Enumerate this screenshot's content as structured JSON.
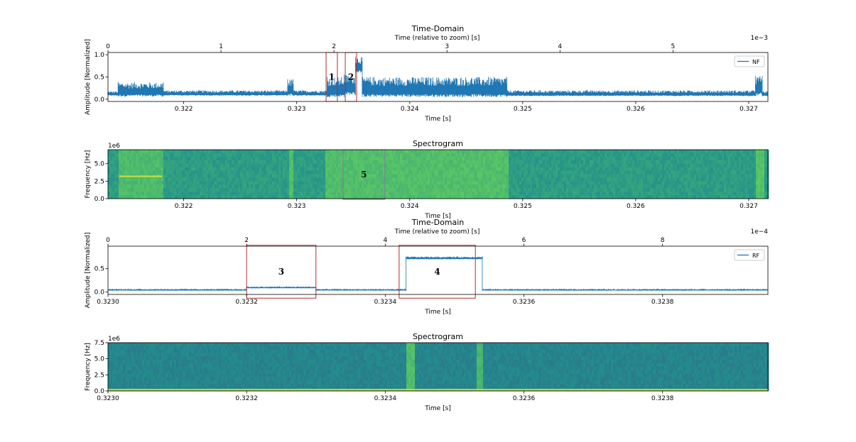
{
  "chart_data": [
    {
      "type": "line",
      "title": "Time-Domain",
      "xlabel": "Time [s]",
      "ylabel": "Amplitude [Normalized]",
      "top_xlabel": "Time (relative to zoom) [s]",
      "top_offset_label": "1e−3",
      "xlim": [
        0.32133,
        0.32717
      ],
      "ylim": [
        -0.05,
        1.05
      ],
      "x_ticks": [
        0.322,
        0.323,
        0.324,
        0.325,
        0.326,
        0.327
      ],
      "x_tick_labels": [
        "0.322",
        "0.323",
        "0.324",
        "0.325",
        "0.326",
        "0.327"
      ],
      "top_x_ticks": [
        0,
        1,
        2,
        3,
        4,
        5
      ],
      "top_x_tick_labels": [
        "0",
        "1",
        "2",
        "3",
        "4",
        "5"
      ],
      "y_ticks": [
        0.0,
        0.5,
        1.0
      ],
      "y_tick_labels": [
        "0.0",
        "0.5",
        "1.0"
      ],
      "series": [
        {
          "name": "NF",
          "color": "#1f77b4",
          "envelope": [
            {
              "x0": 0.32133,
              "x1": 0.32142,
              "low": 0.08,
              "high": 0.18
            },
            {
              "x0": 0.32142,
              "x1": 0.32182,
              "low": 0.06,
              "high": 0.38
            },
            {
              "x0": 0.32182,
              "x1": 0.32292,
              "low": 0.08,
              "high": 0.2
            },
            {
              "x0": 0.32292,
              "x1": 0.32297,
              "low": 0.08,
              "high": 0.45
            },
            {
              "x0": 0.32297,
              "x1": 0.32327,
              "low": 0.08,
              "high": 0.2
            },
            {
              "x0": 0.32327,
              "x1": 0.32342,
              "low": 0.05,
              "high": 0.5
            },
            {
              "x0": 0.32342,
              "x1": 0.32352,
              "low": 0.1,
              "high": 0.55
            },
            {
              "x0": 0.32352,
              "x1": 0.32358,
              "low": 0.6,
              "high": 0.95
            },
            {
              "x0": 0.32358,
              "x1": 0.32365,
              "low": 0.05,
              "high": 0.5
            },
            {
              "x0": 0.32365,
              "x1": 0.32486,
              "low": 0.05,
              "high": 0.5
            },
            {
              "x0": 0.32486,
              "x1": 0.32706,
              "low": 0.07,
              "high": 0.2
            },
            {
              "x0": 0.32706,
              "x1": 0.32712,
              "low": 0.08,
              "high": 0.52
            },
            {
              "x0": 0.32712,
              "x1": 0.32717,
              "low": 0.07,
              "high": 0.18
            }
          ]
        }
      ],
      "legend": "upper right",
      "annotations": [
        {
          "label": "1",
          "x0": 0.32326,
          "x1": 0.32336,
          "y0": -0.05,
          "y1": 1.05
        },
        {
          "label": "2",
          "x0": 0.32343,
          "x1": 0.32353,
          "y0": -0.05,
          "y1": 1.05
        }
      ]
    },
    {
      "type": "heatmap",
      "title": "Spectrogram",
      "xlabel": "Time [s]",
      "ylabel": "Frequency [Hz]",
      "offset_label": "1e6",
      "xlim": [
        0.32133,
        0.32717
      ],
      "ylim": [
        0,
        7.0
      ],
      "x_ticks": [
        0.322,
        0.323,
        0.324,
        0.325,
        0.326,
        0.327
      ],
      "x_tick_labels": [
        "0.322",
        "0.323",
        "0.324",
        "0.325",
        "0.326",
        "0.327"
      ],
      "y_ticks": [
        0.0,
        2.5,
        5.0
      ],
      "y_tick_labels": [
        "0.0",
        "2.5",
        "5.0"
      ],
      "colormap": "viridis",
      "base_level": 0.55,
      "active_bands": [
        {
          "x0": 0.32142,
          "x1": 0.32182,
          "level": 0.68
        },
        {
          "x0": 0.32292,
          "x1": 0.32297,
          "level": 0.7
        },
        {
          "x0": 0.32325,
          "x1": 0.32486,
          "level": 0.7
        },
        {
          "x0": 0.32705,
          "x1": 0.32712,
          "level": 0.72
        }
      ],
      "tone_lines": [
        {
          "x0": 0.32143,
          "x1": 0.32181,
          "freq": 3.2
        }
      ],
      "annotations": [
        {
          "label": "5",
          "x0": 0.32341,
          "x1": 0.32378,
          "y0": -0.1,
          "y1": 7.0
        }
      ]
    },
    {
      "type": "line",
      "title": "Time-Domain",
      "xlabel": "Time [s]",
      "ylabel": "Amplitude [Normalized]",
      "top_xlabel": "Time (relative to zoom) [s]",
      "top_offset_label": "1e−4",
      "xlim": [
        0.323,
        0.323952
      ],
      "ylim": [
        -0.05,
        0.98
      ],
      "x_ticks": [
        0.323,
        0.3232,
        0.3234,
        0.3236,
        0.3238
      ],
      "x_tick_labels": [
        "0.3230",
        "0.3232",
        "0.3234",
        "0.3236",
        "0.3238"
      ],
      "top_x_ticks": [
        0,
        2,
        4,
        6,
        8
      ],
      "top_x_tick_labels": [
        "0",
        "2",
        "4",
        "6",
        "8"
      ],
      "y_ticks": [
        0.0,
        0.5
      ],
      "y_tick_labels": [
        "0.0",
        "0.5"
      ],
      "series": [
        {
          "name": "RF",
          "color": "#1f77b4",
          "envelope": [
            {
              "x0": 0.323,
              "x1": 0.3232,
              "low": 0.03,
              "high": 0.07
            },
            {
              "x0": 0.3232,
              "x1": 0.3233,
              "low": 0.08,
              "high": 0.12
            },
            {
              "x0": 0.3233,
              "x1": 0.32343,
              "low": 0.03,
              "high": 0.07
            },
            {
              "x0": 0.32343,
              "x1": 0.32354,
              "low": 0.7,
              "high": 0.76
            },
            {
              "x0": 0.32354,
              "x1": 0.323952,
              "low": 0.03,
              "high": 0.07
            }
          ]
        }
      ],
      "legend": "upper right",
      "annotations": [
        {
          "label": "3",
          "x0": 0.3232,
          "x1": 0.3233,
          "y0": -0.13,
          "y1": 1.0
        },
        {
          "label": "4",
          "x0": 0.32342,
          "x1": 0.32353,
          "y0": -0.13,
          "y1": 1.0
        }
      ]
    },
    {
      "type": "heatmap",
      "title": "Spectrogram",
      "xlabel": "Time [s]",
      "ylabel": "Frequency [Hz]",
      "offset_label": "1e6",
      "xlim": [
        0.323,
        0.323952
      ],
      "ylim": [
        0,
        7.5
      ],
      "x_ticks": [
        0.323,
        0.3232,
        0.3234,
        0.3236,
        0.3238
      ],
      "x_tick_labels": [
        "0.3230",
        "0.3232",
        "0.3234",
        "0.3236",
        "0.3238"
      ],
      "y_ticks": [
        0.0,
        2.5,
        5.0,
        7.5
      ],
      "y_tick_labels": [
        "0.0",
        "2.5",
        "5.0",
        "7.5"
      ],
      "colormap": "viridis",
      "base_level": 0.45,
      "active_bands": [
        {
          "x0": 0.32343,
          "x1": 0.32344,
          "level": 0.7
        },
        {
          "x0": 0.32353,
          "x1": 0.32354,
          "level": 0.66
        }
      ],
      "tone_lines": [
        {
          "x0": 0.323,
          "x1": 0.323952,
          "freq": 0.2
        }
      ],
      "annotations": []
    }
  ]
}
